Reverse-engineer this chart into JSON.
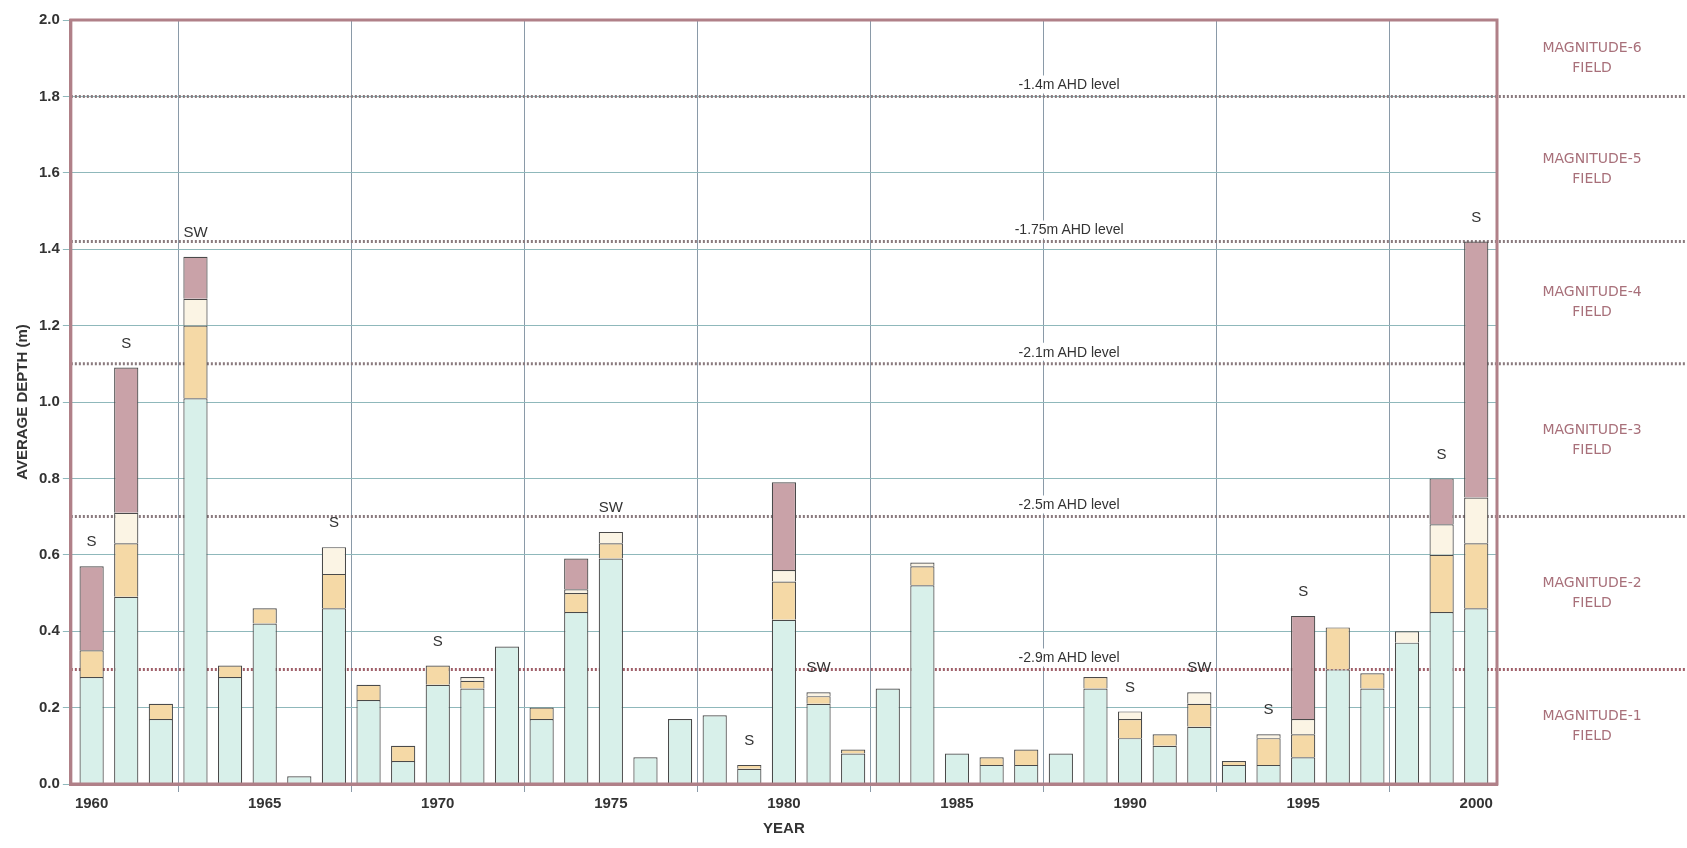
{
  "chart_data": {
    "type": "bar",
    "stacked": true,
    "xlabel": "YEAR",
    "ylabel": "AVERAGE DEPTH (m)",
    "x": [
      1960,
      1961,
      1962,
      1963,
      1964,
      1965,
      1966,
      1967,
      1968,
      1969,
      1970,
      1971,
      1972,
      1973,
      1974,
      1975,
      1976,
      1977,
      1978,
      1979,
      1980,
      1981,
      1982,
      1983,
      1984,
      1985,
      1986,
      1987,
      1988,
      1989,
      1990,
      1991,
      1992,
      1993,
      1994,
      1995,
      1996,
      1997,
      1998,
      1999,
      2000
    ],
    "xlim": [
      1959.4,
      2000.6
    ],
    "xticks": [
      1960,
      1965,
      1970,
      1975,
      1980,
      1985,
      1990,
      1995,
      2000
    ],
    "ylim": [
      0,
      2
    ],
    "yticks": [
      {
        "value": 0,
        "label": "0.0"
      },
      0.2,
      0.4,
      0.6,
      0.8,
      {
        "value": 1,
        "label": "1.0"
      },
      1.2,
      1.4,
      1.6,
      1.8,
      {
        "value": 2,
        "label": "2.0"
      }
    ],
    "grid": true,
    "series": [
      {
        "color": "#d8f0ea",
        "values": [
          0.28,
          0.49,
          0.17,
          1.01,
          0.28,
          0.42,
          0.02,
          0.46,
          0.22,
          0.06,
          0.26,
          0.25,
          0.36,
          0.17,
          0.45,
          0.59,
          0.07,
          0.17,
          0.18,
          0.04,
          0.43,
          0.21,
          0.08,
          0.25,
          0.52,
          0.08,
          0.05,
          0.05,
          0.08,
          0.25,
          0.12,
          0.1,
          0.15,
          0.05,
          0.05,
          0.07,
          0.3,
          0.25,
          0.37,
          0.45,
          0.46
        ]
      },
      {
        "color": "#f5d9a6",
        "values": [
          0.07,
          0.14,
          0.04,
          0.19,
          0.03,
          0.04,
          0,
          0.09,
          0.04,
          0.04,
          0.05,
          0.02,
          0,
          0.03,
          0.05,
          0.04,
          0,
          0,
          0,
          0.01,
          0.1,
          0.02,
          0.01,
          0,
          0.05,
          0,
          0.02,
          0.04,
          0,
          0.03,
          0.05,
          0.03,
          0.06,
          0.01,
          0.07,
          0.06,
          0.11,
          0.04,
          0,
          0.15,
          0.17
        ]
      },
      {
        "color": "#fbf4e4",
        "values": [
          0,
          0.08,
          0,
          0.07,
          0,
          0,
          0,
          0.07,
          0,
          0,
          0,
          0.01,
          0,
          0,
          0.01,
          0.03,
          0,
          0,
          0,
          0,
          0.03,
          0.01,
          0,
          0,
          0.01,
          0,
          0,
          0,
          0,
          0,
          0.02,
          0,
          0.03,
          0,
          0.01,
          0.04,
          0,
          0,
          0.03,
          0.08,
          0.12
        ]
      },
      {
        "color": "#c9a2a8",
        "values": [
          0.22,
          0.38,
          0,
          0.11,
          0,
          0,
          0,
          0,
          0,
          0,
          0,
          0,
          0,
          0,
          0.08,
          0,
          0,
          0,
          0,
          0,
          0.23,
          0,
          0,
          0,
          0,
          0,
          0,
          0,
          0,
          0,
          0,
          0,
          0,
          0,
          0,
          0.27,
          0,
          0,
          0,
          0.12,
          0.67
        ]
      }
    ],
    "ref_lines": [
      {
        "axis": "y",
        "value": 1.8,
        "label": "-1.4m AHD level",
        "color": "#8a7a7e",
        "line_style": "dotted"
      },
      {
        "axis": "y",
        "value": 1.42,
        "label": "-1.75m AHD level",
        "color": "#8a7a7e",
        "line_style": "dotted"
      },
      {
        "axis": "y",
        "value": 1.1,
        "label": "-2.1m AHD level",
        "color": "#8a7a7e",
        "line_style": "dotted"
      },
      {
        "axis": "y",
        "value": 0.7,
        "label": "-2.5m AHD level",
        "color": "#8a7a7e",
        "line_style": "dotted"
      },
      {
        "axis": "y",
        "value": 0.3,
        "label": "-2.9m AHD level",
        "color": "#a0606a",
        "line_style": "dotted"
      }
    ],
    "annotations": [
      "MAGNITUDE-6 FIELD",
      "MAGNITUDE-5 FIELD",
      "MAGNITUDE-4 FIELD",
      "MAGNITUDE-3 FIELD",
      "MAGNITUDE-2 FIELD",
      "MAGNITUDE-1 FIELD",
      {
        "text": "S",
        "x": 1960,
        "y": 0.57
      },
      {
        "text": "S",
        "x": 1961,
        "y": 1.09
      },
      {
        "text": "SW",
        "x": 1963,
        "y": 1.38
      },
      {
        "text": "S",
        "x": 1967,
        "y": 0.62
      },
      {
        "text": "S",
        "x": 1970,
        "y": 0.31
      },
      {
        "text": "SW",
        "x": 1975,
        "y": 0.66
      },
      {
        "text": "S",
        "x": 1979,
        "y": 0.05
      },
      {
        "text": "SW",
        "x": 1981,
        "y": 0.24
      },
      {
        "text": "S",
        "x": 1990,
        "y": 0.19
      },
      {
        "text": "SW",
        "x": 1992,
        "y": 0.24
      },
      {
        "text": "S",
        "x": 1994,
        "y": 0.13
      },
      {
        "text": "S",
        "x": 1995,
        "y": 0.44
      },
      {
        "text": "S",
        "x": 1999,
        "y": 0.8
      },
      {
        "text": "S",
        "x": 2000,
        "y": 1.42
      }
    ]
  }
}
